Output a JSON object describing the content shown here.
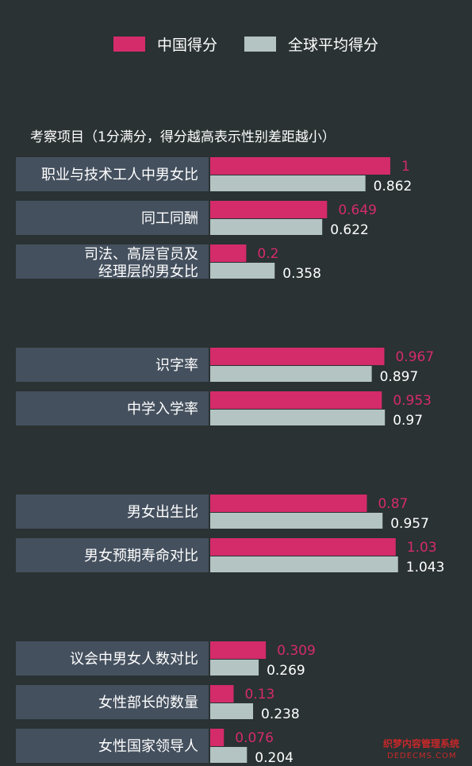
{
  "colors": {
    "background": "#2a3233",
    "china": "#d42b6a",
    "global": "#b4c4c3",
    "label_box": "#44505e"
  },
  "chart_data": {
    "type": "bar",
    "orientation": "horizontal",
    "subtitle": "考察项目（1分满分，得分越高表示性别差距越小）",
    "legend": {
      "placement": "top",
      "entries": [
        "中国得分",
        "全球平均得分"
      ]
    },
    "series": [
      {
        "name": "中国得分",
        "color": "#d42b6a"
      },
      {
        "name": "全球平均得分",
        "color": "#b4c4c3"
      }
    ],
    "groups": [
      {
        "categories": [
          {
            "label": [
              "职业与技术工人中男女比"
            ],
            "china": 1,
            "china_label": "1",
            "global": 0.862,
            "global_label": "0.862"
          },
          {
            "label": [
              "同工同酬"
            ],
            "china": 0.649,
            "china_label": "0.649",
            "global": 0.622,
            "global_label": "0.622"
          },
          {
            "label": [
              "司法、高层官员及",
              "经理层的男女比"
            ],
            "china": 0.2,
            "china_label": "0.2",
            "global": 0.358,
            "global_label": "0.358"
          }
        ]
      },
      {
        "categories": [
          {
            "label": [
              "识字率"
            ],
            "china": 0.967,
            "china_label": "0.967",
            "global": 0.897,
            "global_label": "0.897"
          },
          {
            "label": [
              "中学入学率"
            ],
            "china": 0.953,
            "china_label": "0.953",
            "global": 0.97,
            "global_label": "0.97"
          }
        ]
      },
      {
        "categories": [
          {
            "label": [
              "男女出生比"
            ],
            "china": 0.87,
            "china_label": "0.87",
            "global": 0.957,
            "global_label": "0.957"
          },
          {
            "label": [
              "男女预期寿命对比"
            ],
            "china": 1.03,
            "china_label": "1.03",
            "global": 1.043,
            "global_label": "1.043"
          }
        ]
      },
      {
        "categories": [
          {
            "label": [
              "议会中男女人数对比"
            ],
            "china": 0.309,
            "china_label": "0.309",
            "global": 0.269,
            "global_label": "0.269"
          },
          {
            "label": [
              "女性部长的数量"
            ],
            "china": 0.13,
            "china_label": "0.13",
            "global": 0.238,
            "global_label": "0.238"
          },
          {
            "label": [
              "女性国家领导人"
            ],
            "china": 0.076,
            "china_label": "0.076",
            "global": 0.204,
            "global_label": "0.204"
          }
        ]
      }
    ]
  },
  "watermark": {
    "line1": "织梦内容管理系统",
    "line2": "DEDECMS.COM"
  }
}
